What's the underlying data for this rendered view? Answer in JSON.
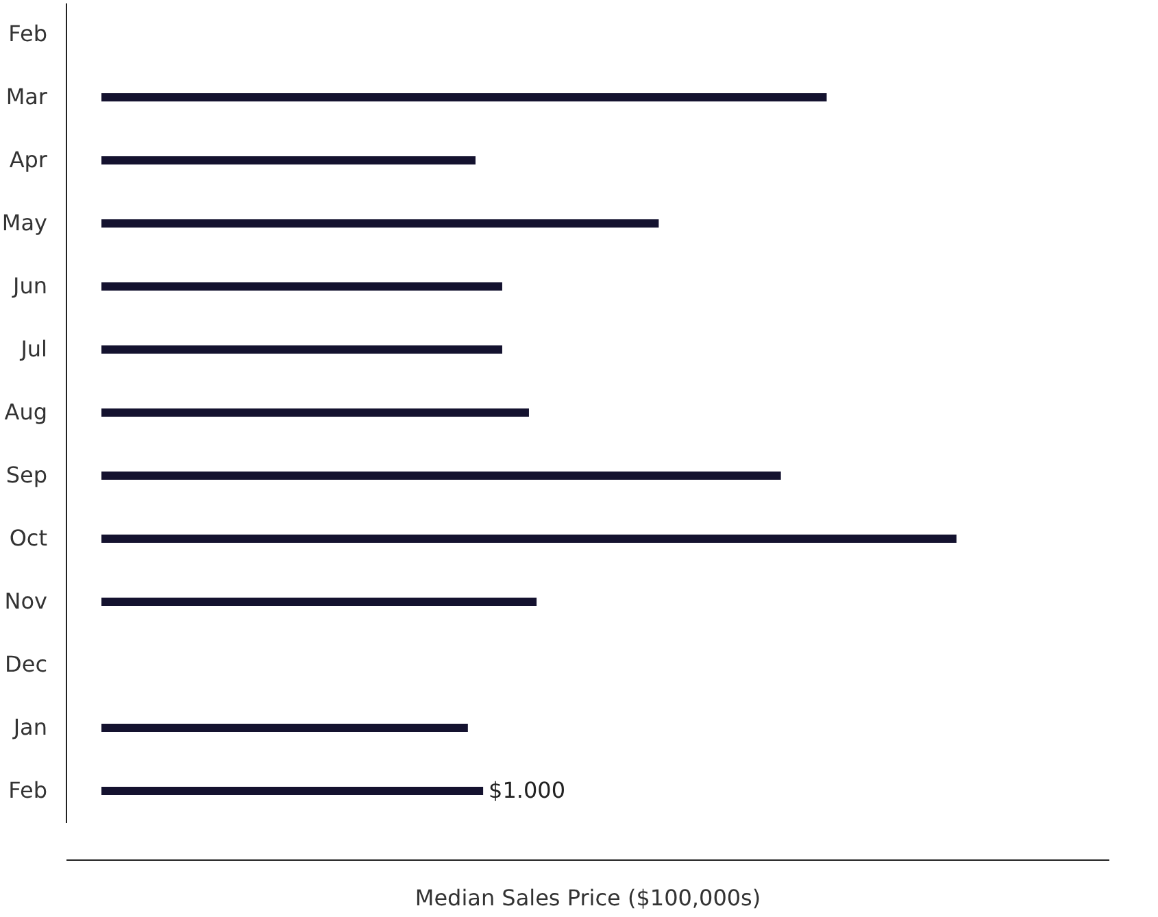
{
  "chart_data": {
    "type": "bar",
    "orientation": "horizontal",
    "tick_labels": "y",
    "xlabel": "Median Sales Price ($100,000s)",
    "categories": [
      "Feb",
      "Mar",
      "Apr",
      "May",
      "Jun",
      "Jul",
      "Aug",
      "Sep",
      "Oct",
      "Nov",
      "Dec",
      "Jan",
      "Feb"
    ],
    "values": [
      null,
      1.9,
      0.98,
      1.46,
      1.05,
      1.05,
      1.12,
      1.78,
      2.24,
      1.14,
      null,
      0.96,
      1.0
    ],
    "value_labels": [
      null,
      null,
      null,
      null,
      null,
      null,
      null,
      null,
      null,
      null,
      null,
      null,
      "$1.000"
    ],
    "color": "#14122f"
  }
}
